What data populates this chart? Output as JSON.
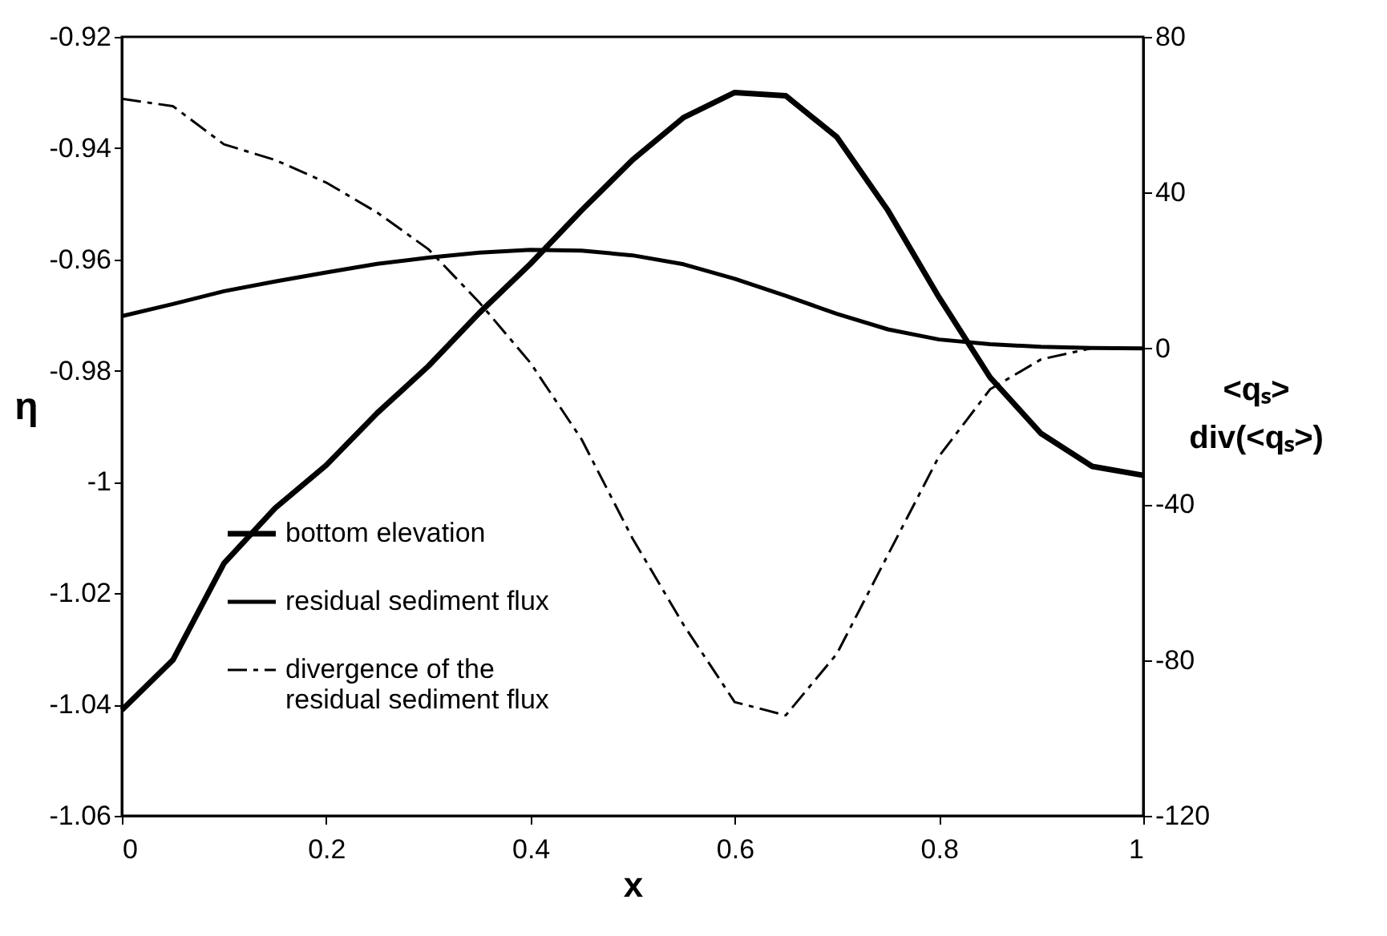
{
  "chart_data": {
    "type": "line",
    "xlabel": "x",
    "ylabel": "η",
    "y2label": "<qₛ>\ndiv(<qₛ>)",
    "x": [
      0,
      0.05,
      0.1,
      0.15,
      0.2,
      0.25,
      0.3,
      0.35,
      0.4,
      0.45,
      0.5,
      0.55,
      0.6,
      0.65,
      0.7,
      0.75,
      0.8,
      0.85,
      0.9,
      0.95,
      1
    ],
    "series": [
      {
        "name": "bottom elevation",
        "color": "#000000",
        "line_style": "solid",
        "values": [
          -1.041,
          -1.032,
          -1.0146,
          -1.0047,
          -0.997,
          -0.9876,
          -0.9792,
          -0.9696,
          -0.9608,
          -0.9512,
          -0.9421,
          -0.9345,
          -0.93,
          -0.9306,
          -0.938,
          -0.9512,
          -0.9668,
          -0.9812,
          -0.9913,
          -0.9972,
          -0.9988
        ]
      },
      {
        "name": "residual sediment flux",
        "color": "#000000",
        "line_style": "solid",
        "axis": "y2",
        "values": [
          8.3,
          11.4,
          14.7,
          17.2,
          19.5,
          21.7,
          23.3,
          24.6,
          25.3,
          25.1,
          23.9,
          21.6,
          17.9,
          13.5,
          8.9,
          4.9,
          2.3,
          1.1,
          0.4,
          0.1,
          0
        ]
      },
      {
        "name": "divergence of the\nresidual sediment flux",
        "color": "#000000",
        "line_style": "dashed",
        "axis": "y2",
        "values": [
          64.1,
          62.2,
          52.4,
          48.4,
          42.6,
          34.9,
          25.5,
          11.8,
          -3.7,
          -23.3,
          -48.8,
          -71.0,
          -90.8,
          -94.2,
          -78.4,
          -53.0,
          -27.7,
          -10.5,
          -2.8,
          0.1,
          null
        ]
      }
    ],
    "xlim": [
      0,
      1
    ],
    "xticks": [
      0,
      0.2,
      0.4,
      0.6,
      0.8,
      1
    ],
    "ylim": [
      -1.06,
      -0.92
    ],
    "yticks": [
      -1.06,
      -1.04,
      -1.02,
      -1,
      -0.98,
      -0.96,
      -0.94,
      -0.92
    ],
    "y2lim": [
      -120,
      80
    ],
    "y2ticks": [
      -120,
      -80,
      -40,
      0,
      40,
      80
    ],
    "grid": false,
    "legend": "bottom left",
    "marker": "none"
  }
}
